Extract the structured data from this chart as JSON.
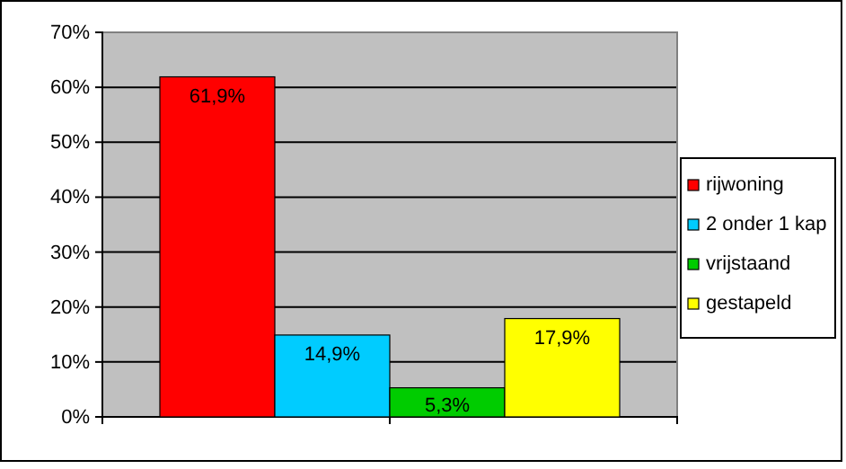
{
  "chart_data": {
    "type": "bar",
    "categories": [
      null
    ],
    "series": [
      {
        "name": "rijwoning",
        "color": "#ff0000",
        "values": [
          61.9
        ],
        "value_labels": [
          "61,9%"
        ]
      },
      {
        "name": "2 onder 1 kap",
        "color": "#00ccff",
        "values": [
          14.9
        ],
        "value_labels": [
          "14,9%"
        ]
      },
      {
        "name": "vrijstaand",
        "color": "#00cc00",
        "values": [
          5.3
        ],
        "value_labels": [
          "5,3%"
        ]
      },
      {
        "name": "gestapeld",
        "color": "#ffff00",
        "values": [
          17.9
        ],
        "value_labels": [
          "17,9%"
        ]
      }
    ],
    "ylim": [
      0,
      70
    ],
    "yticks": [
      {
        "value": 0,
        "label": "0%"
      },
      {
        "value": 10,
        "label": "10%"
      },
      {
        "value": 20,
        "label": "20%"
      },
      {
        "value": 30,
        "label": "30%"
      },
      {
        "value": 40,
        "label": "40%"
      },
      {
        "value": 50,
        "label": "50%"
      },
      {
        "value": 60,
        "label": "60%"
      },
      {
        "value": 70,
        "label": "70%"
      }
    ],
    "grid": "y",
    "legend": "right"
  }
}
